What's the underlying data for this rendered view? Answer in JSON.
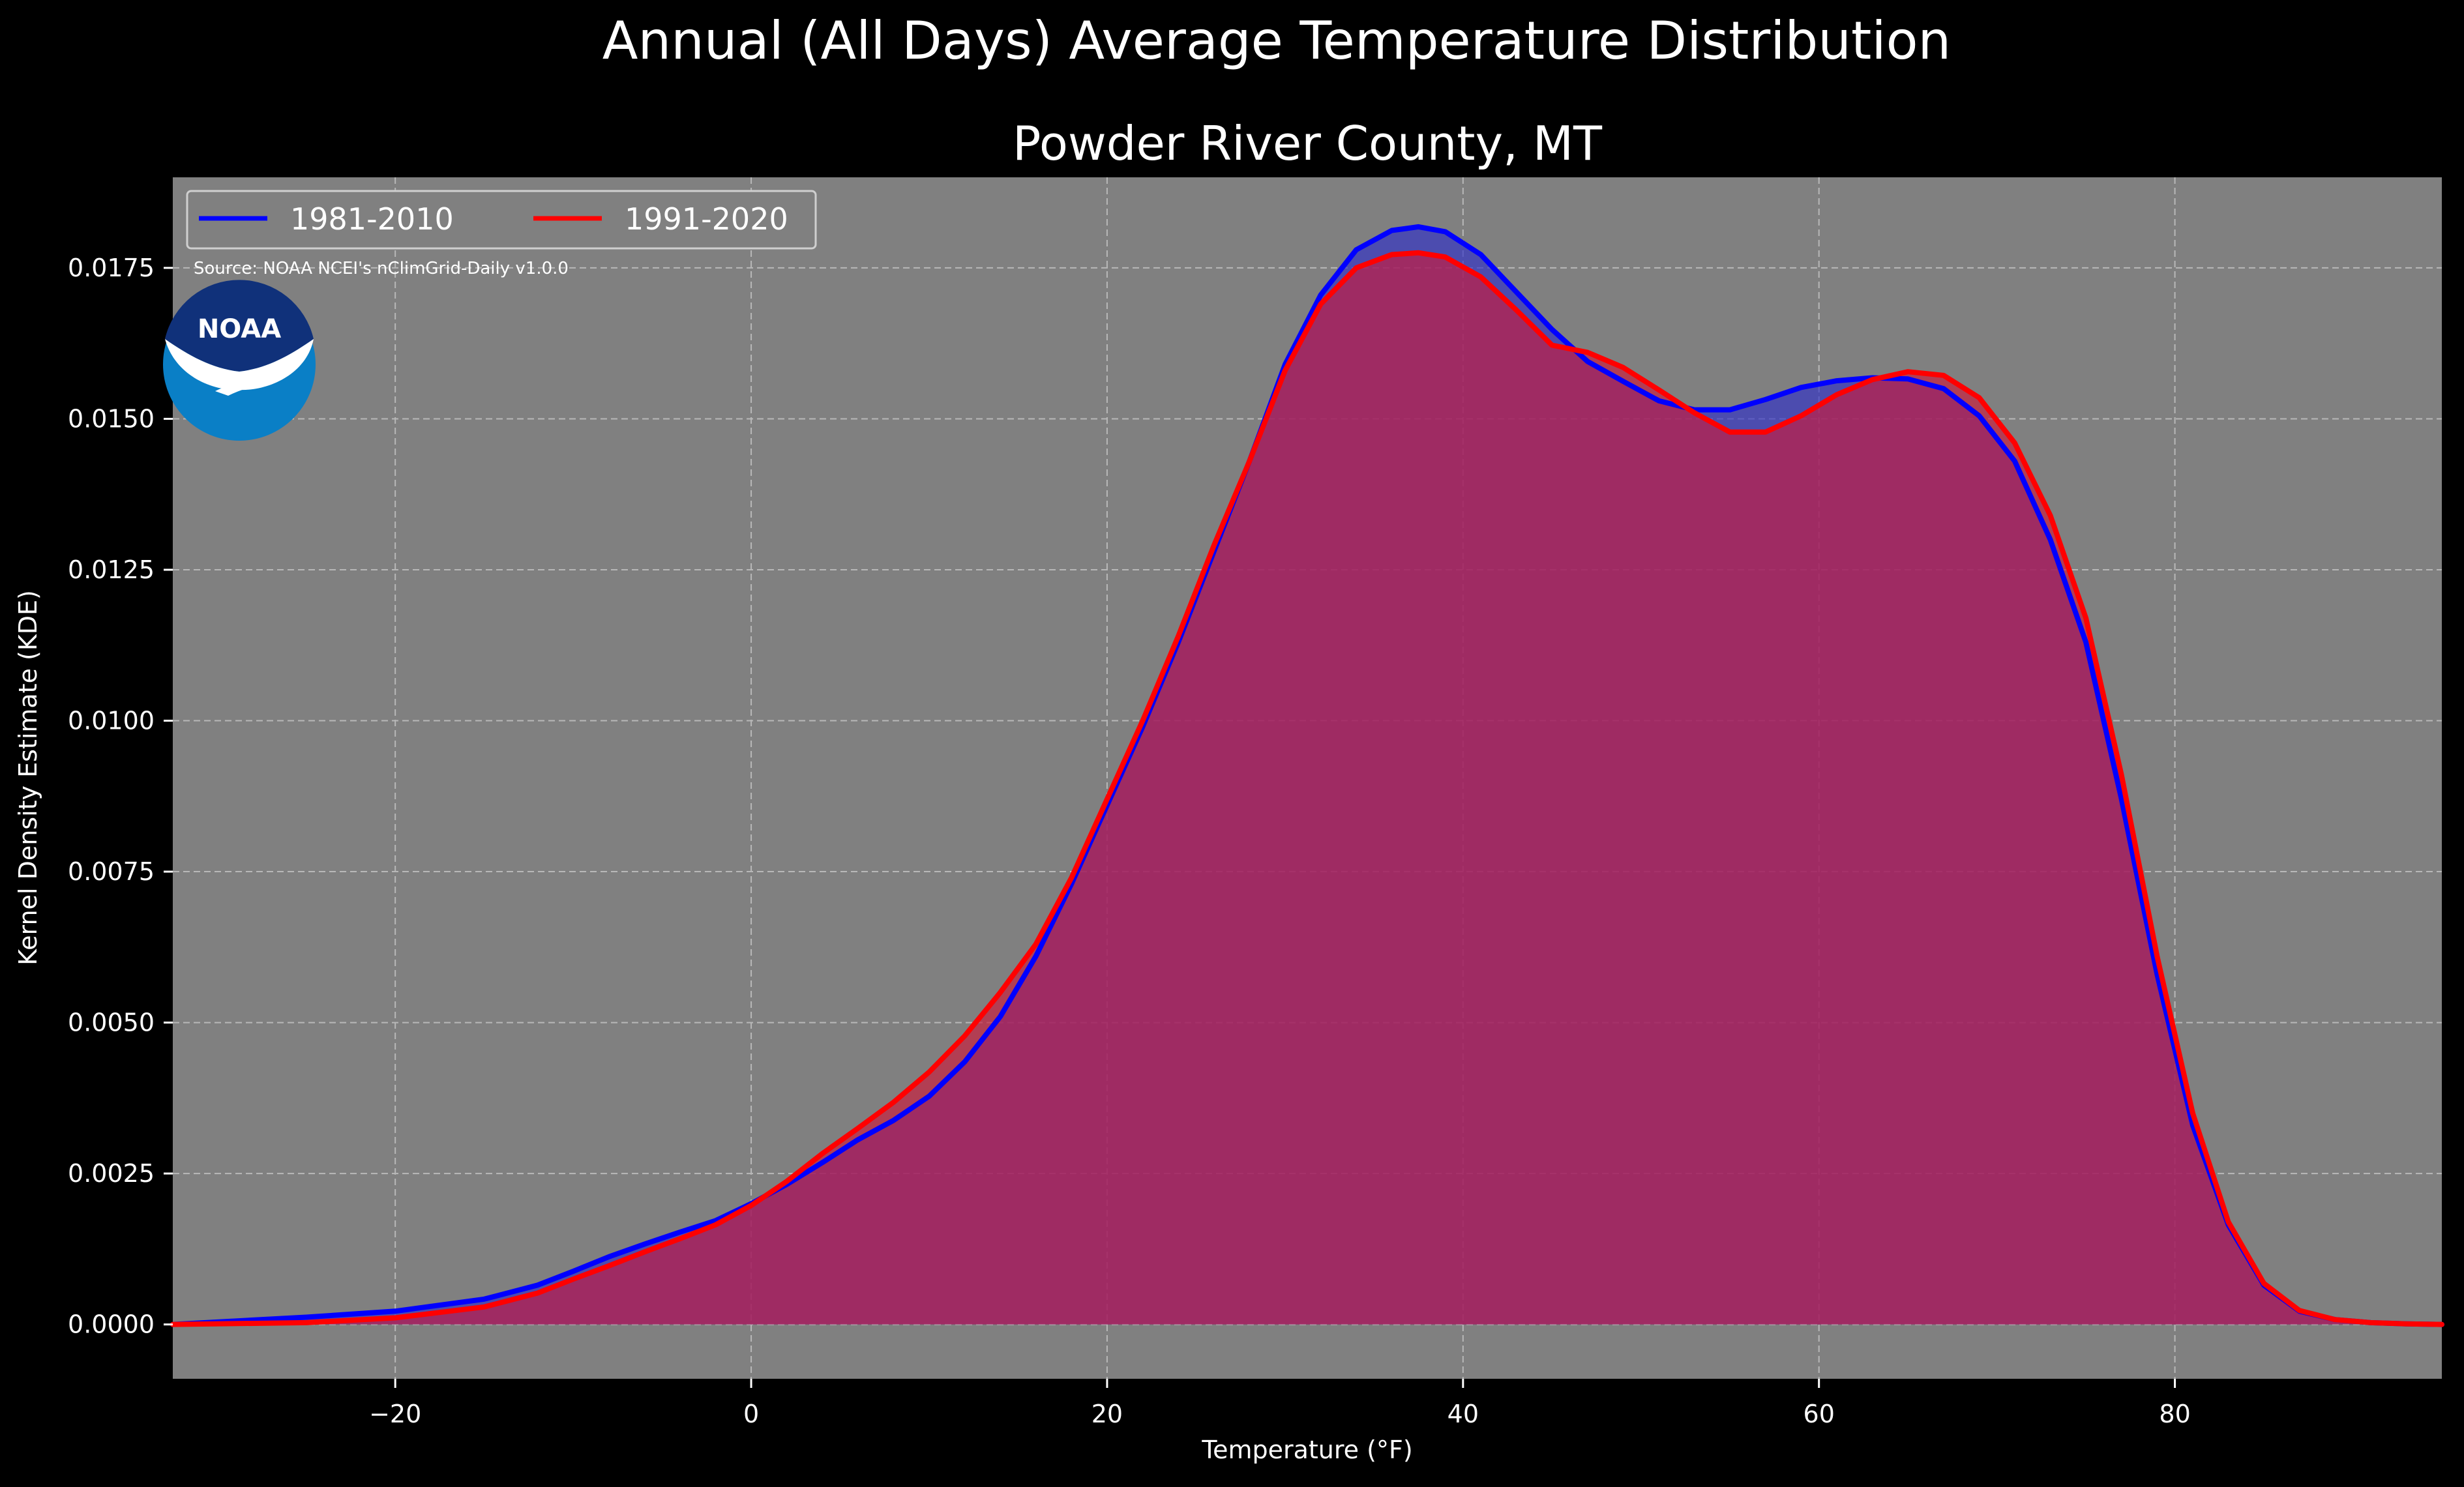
{
  "chart_data": {
    "type": "area",
    "suptitle": "Annual (All Days) Average Temperature Distribution",
    "title": "Powder River County, MT",
    "xlabel": "Temperature (°F)",
    "ylabel": "Kernel Density Estimate (KDE)",
    "source_note": "Source: NOAA NCEI's nClimGrid-Daily v1.0.0",
    "logo_text": "NOAA",
    "xlim": [
      -32.5,
      95
    ],
    "ylim": [
      -0.0009,
      0.019
    ],
    "x_ticks": [
      -20,
      0,
      20,
      40,
      60,
      80
    ],
    "x_tick_labels": [
      "−20",
      "0",
      "20",
      "40",
      "60",
      "80"
    ],
    "y_ticks": [
      0,
      0.0025,
      0.005,
      0.0075,
      0.01,
      0.0125,
      0.015,
      0.0175
    ],
    "y_tick_labels": [
      "0.0000",
      "0.0025",
      "0.0050",
      "0.0075",
      "0.0100",
      "0.0125",
      "0.0150",
      "0.0175"
    ],
    "grid": true,
    "legend_position": "upper-left",
    "background_color": "#808080",
    "series": [
      {
        "name": "1981-2010",
        "color": "#0000ff",
        "fill": "#3030c8",
        "x": [
          -32.5,
          -25,
          -20,
          -15,
          -12,
          -10,
          -8,
          -6,
          -4,
          -2,
          0,
          2,
          4,
          6,
          8,
          10,
          12,
          14,
          16,
          18,
          20,
          22,
          24,
          26,
          28,
          30,
          32,
          34,
          36,
          37.5,
          39,
          41,
          43,
          45,
          47,
          49,
          51,
          53,
          55,
          57,
          59,
          61,
          63,
          65,
          67,
          69,
          71,
          73,
          75,
          77,
          79,
          81,
          83,
          85,
          87,
          89,
          91,
          93,
          95
        ],
        "y": [
          0.0,
          0.00012,
          0.00022,
          0.00042,
          0.00065,
          0.00088,
          0.00112,
          0.00133,
          0.00153,
          0.00172,
          0.002,
          0.00232,
          0.00268,
          0.00306,
          0.00338,
          0.00378,
          0.00435,
          0.0051,
          0.0061,
          0.0073,
          0.0086,
          0.0099,
          0.0113,
          0.0128,
          0.0143,
          0.0159,
          0.01705,
          0.0178,
          0.01812,
          0.01818,
          0.0181,
          0.01772,
          0.0171,
          0.01648,
          0.01595,
          0.01562,
          0.0153,
          0.01515,
          0.01515,
          0.01532,
          0.01552,
          0.01563,
          0.01568,
          0.01566,
          0.0155,
          0.01505,
          0.0143,
          0.013,
          0.0113,
          0.0087,
          0.0058,
          0.0033,
          0.00165,
          0.00065,
          0.00022,
          8e-05,
          3e-05,
          1e-05,
          0.0
        ]
      },
      {
        "name": "1991-2020",
        "color": "#ff0000",
        "fill": "#cc1a3a",
        "x": [
          -32.5,
          -25,
          -20,
          -15,
          -12,
          -10,
          -8,
          -6,
          -4,
          -2,
          0,
          2,
          4,
          6,
          8,
          10,
          12,
          14,
          16,
          18,
          20,
          22,
          24,
          26,
          28,
          30,
          32,
          34,
          36,
          37.5,
          39,
          41,
          43,
          45,
          47,
          49,
          51,
          53,
          55,
          57,
          59,
          61,
          63,
          65,
          67,
          69,
          71,
          73,
          75,
          77,
          79,
          81,
          83,
          85,
          87,
          89,
          91,
          93,
          95
        ],
        "y": [
          0.0,
          3e-05,
          0.00011,
          0.00029,
          0.00052,
          0.00075,
          0.00097,
          0.0012,
          0.00142,
          0.00165,
          0.00197,
          0.00237,
          0.00283,
          0.00325,
          0.00368,
          0.00418,
          0.00478,
          0.0055,
          0.0063,
          0.0074,
          0.0087,
          0.01,
          0.0114,
          0.0129,
          0.0143,
          0.0158,
          0.0169,
          0.0175,
          0.01772,
          0.01775,
          0.01768,
          0.01735,
          0.0168,
          0.01622,
          0.0161,
          0.01585,
          0.01548,
          0.0151,
          0.01478,
          0.01478,
          0.01505,
          0.0154,
          0.01565,
          0.01578,
          0.01572,
          0.01535,
          0.0146,
          0.0134,
          0.0117,
          0.0091,
          0.0061,
          0.0035,
          0.0017,
          0.00068,
          0.00023,
          8e-05,
          3e-05,
          1e-05,
          0.0
        ]
      }
    ]
  }
}
